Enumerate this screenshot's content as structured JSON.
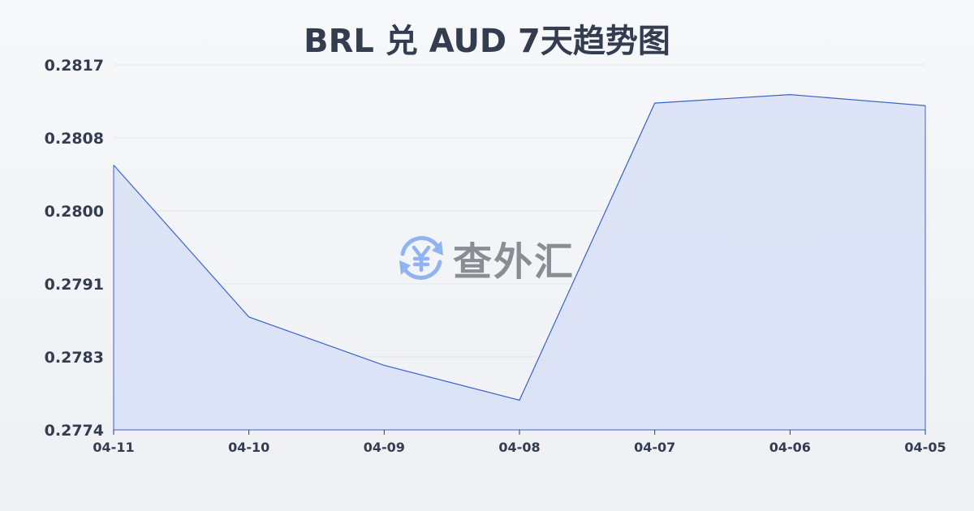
{
  "watermark": {
    "text": "查外汇",
    "icon": "yen-exchange-icon",
    "color": "#8fb4f0"
  },
  "chart_data": {
    "type": "area",
    "title": "BRL 兑 AUD 7天趋势图",
    "xlabel": "",
    "ylabel": "",
    "categories": [
      "04-11",
      "04-10",
      "04-09",
      "04-08",
      "04-07",
      "04-06",
      "04-05"
    ],
    "values": [
      0.28052,
      0.27873,
      0.27816,
      0.27775,
      0.28125,
      0.28135,
      0.28122
    ],
    "ylim": [
      0.2774,
      0.2817
    ],
    "yticks": [
      "0.2817",
      "0.2808",
      "0.2800",
      "0.2791",
      "0.2783",
      "0.2774"
    ],
    "grid": true,
    "line_color": "#3a63c8",
    "fill_color": "#d4def5"
  }
}
